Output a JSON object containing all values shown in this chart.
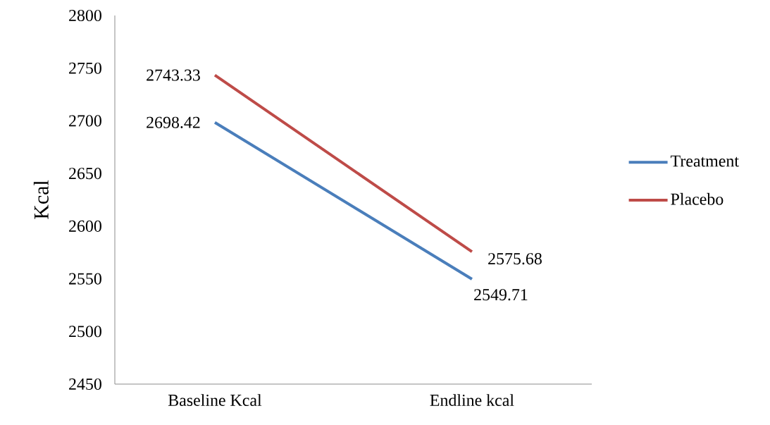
{
  "chart_data": {
    "type": "line",
    "ylabel": "Kcal",
    "categories": [
      "Baseline Kcal",
      "Endline kcal"
    ],
    "series": [
      {
        "name": "Treatment",
        "color": "#4a7ebb",
        "values": [
          2698.42,
          2549.71
        ]
      },
      {
        "name": "Placebo",
        "color": "#be4b48",
        "values": [
          2743.33,
          2575.68
        ]
      }
    ],
    "ylim": [
      2450,
      2800
    ],
    "yticks": [
      2450,
      2500,
      2550,
      2600,
      2650,
      2700,
      2750,
      2800
    ],
    "grid": false,
    "legend": "right",
    "data_labels": true,
    "marker": "none",
    "line_style": "solid"
  }
}
